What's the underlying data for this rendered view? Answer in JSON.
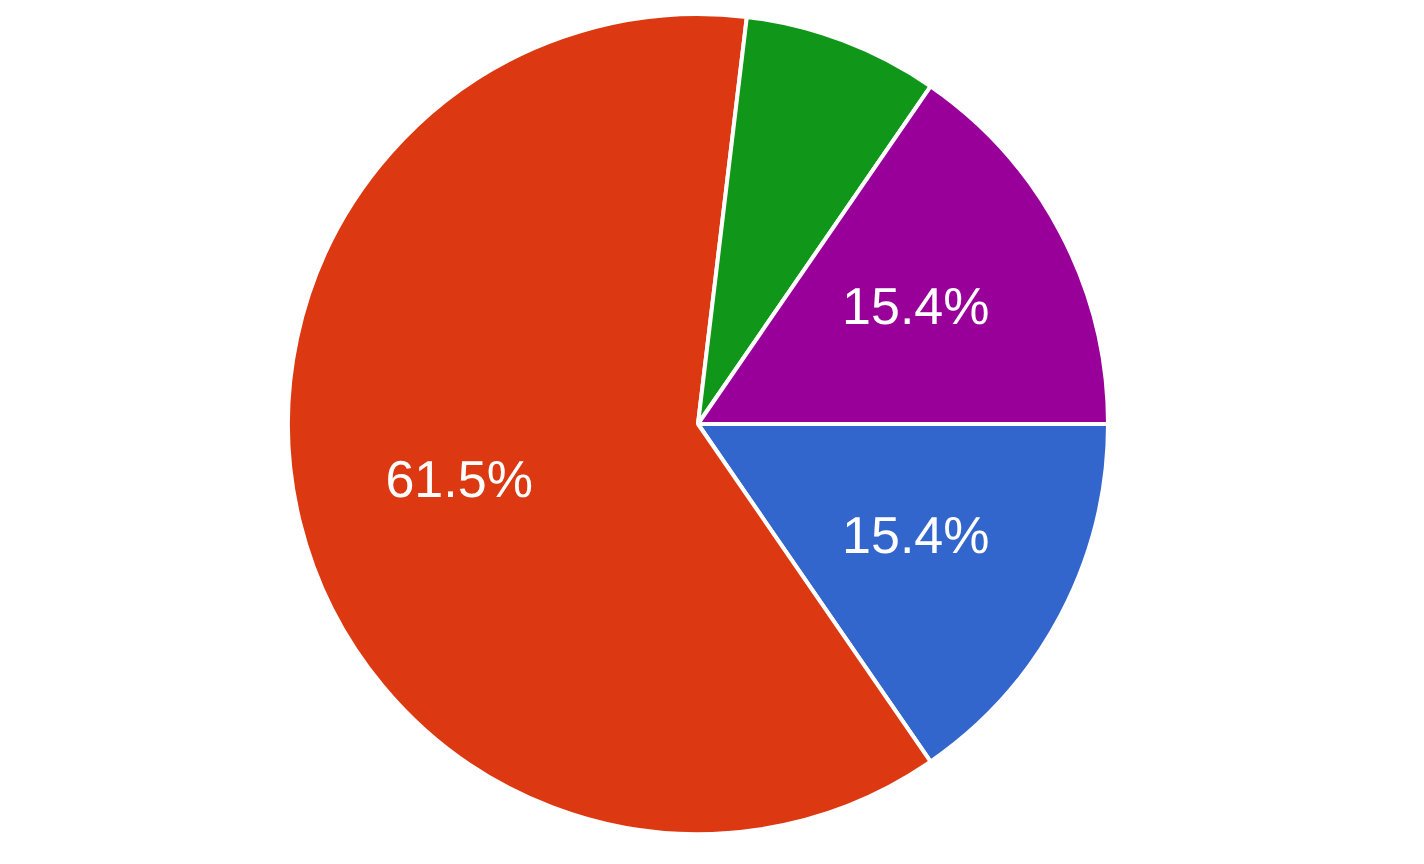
{
  "chart_data": {
    "type": "pie",
    "categories": [
      null,
      null,
      null,
      null
    ],
    "values": [
      15.4,
      61.5,
      7.7,
      15.4
    ],
    "colors": [
      "#3366cc",
      "#dc3912",
      "#109618",
      "#990099"
    ],
    "value_labels": [
      "15.4%",
      "61.5%",
      null,
      "15.4%"
    ],
    "legend": false
  }
}
